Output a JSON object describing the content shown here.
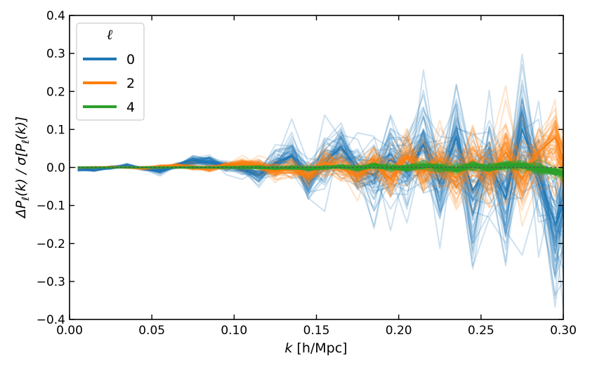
{
  "chart_data": {
    "type": "line",
    "xlabel": "k [h/Mpc]",
    "ylabel": "ΔP_ℓ(k) / σ[P_ℓ(k)]",
    "xlabel_parts": {
      "k": "k",
      "unit": " [h/Mpc]"
    },
    "ylabel_parts": {
      "delta": "ΔP",
      "ell": "ℓ",
      "mid1": "(k) / σ[P",
      "mid2": "(k)]"
    },
    "xlim": [
      0.0,
      0.3
    ],
    "ylim": [
      -0.4,
      0.4
    ],
    "xticks": [
      0.0,
      0.05,
      0.1,
      0.15,
      0.2,
      0.25,
      0.3
    ],
    "xtick_labels": [
      "0.00",
      "0.05",
      "0.10",
      "0.15",
      "0.20",
      "0.25",
      "0.30"
    ],
    "yticks": [
      -0.4,
      -0.3,
      -0.2,
      -0.1,
      0.0,
      0.1,
      0.2,
      0.3,
      0.4
    ],
    "ytick_labels": [
      "−0.4",
      "−0.3",
      "−0.2",
      "−0.1",
      "0.0",
      "0.1",
      "0.2",
      "0.3",
      "0.4"
    ],
    "grid": false,
    "legend": {
      "title": "ℓ",
      "location": "top-left",
      "entries": [
        {
          "label": "0",
          "color": "#1f77b4"
        },
        {
          "label": "2",
          "color": "#ff7f0e"
        },
        {
          "label": "4",
          "color": "#2ca02c"
        }
      ]
    },
    "k": [
      0.005,
      0.015,
      0.025,
      0.035,
      0.045,
      0.055,
      0.065,
      0.075,
      0.085,
      0.095,
      0.105,
      0.115,
      0.125,
      0.135,
      0.145,
      0.155,
      0.165,
      0.175,
      0.185,
      0.195,
      0.205,
      0.215,
      0.225,
      0.235,
      0.245,
      0.255,
      0.265,
      0.275,
      0.285,
      0.295,
      0.3
    ],
    "series": [
      {
        "name": "0",
        "color": "#1f77b4",
        "realizations": 60,
        "mean": [
          -0.005,
          -0.006,
          -0.001,
          0.005,
          -0.003,
          -0.01,
          0.005,
          0.018,
          0.015,
          0.005,
          -0.005,
          -0.02,
          0.01,
          0.03,
          -0.03,
          0.01,
          0.055,
          -0.005,
          -0.02,
          0.02,
          -0.01,
          0.06,
          -0.04,
          0.08,
          -0.06,
          0.01,
          -0.08,
          0.1,
          -0.02,
          -0.15,
          -0.1
        ],
        "spread": [
          0.002,
          0.002,
          0.002,
          0.002,
          0.002,
          0.003,
          0.004,
          0.005,
          0.006,
          0.007,
          0.01,
          0.015,
          0.02,
          0.025,
          0.03,
          0.035,
          0.03,
          0.04,
          0.05,
          0.06,
          0.05,
          0.06,
          0.06,
          0.07,
          0.08,
          0.06,
          0.07,
          0.08,
          0.07,
          0.09,
          0.09
        ]
      },
      {
        "name": "2",
        "color": "#ff7f0e",
        "realizations": 60,
        "mean": [
          0.0,
          0.0,
          0.001,
          0.0,
          -0.002,
          0.002,
          0.004,
          0.0,
          -0.003,
          0.005,
          0.01,
          0.005,
          -0.01,
          0.0,
          -0.02,
          0.01,
          0.0,
          -0.02,
          0.02,
          -0.03,
          0.03,
          -0.01,
          0.02,
          -0.03,
          0.02,
          -0.02,
          0.04,
          -0.03,
          0.04,
          0.08,
          0.02
        ],
        "spread": [
          0.001,
          0.001,
          0.001,
          0.001,
          0.002,
          0.002,
          0.003,
          0.004,
          0.005,
          0.006,
          0.008,
          0.01,
          0.012,
          0.015,
          0.018,
          0.02,
          0.022,
          0.025,
          0.028,
          0.03,
          0.032,
          0.035,
          0.04,
          0.045,
          0.045,
          0.05,
          0.05,
          0.055,
          0.055,
          0.06,
          0.06
        ]
      },
      {
        "name": "4",
        "color": "#2ca02c",
        "realizations": 60,
        "mean": [
          0.0,
          0.0,
          0.0,
          0.0,
          0.0,
          0.0,
          0.0,
          0.0,
          0.0,
          0.0,
          0.0,
          0.0,
          -0.002,
          0.0,
          -0.003,
          0.0,
          0.002,
          -0.003,
          0.003,
          0.0,
          -0.002,
          0.004,
          0.0,
          -0.004,
          0.005,
          0.0,
          0.006,
          0.004,
          -0.004,
          -0.01,
          -0.015
        ],
        "spread": [
          0.0005,
          0.0005,
          0.0005,
          0.0005,
          0.0006,
          0.0007,
          0.0008,
          0.001,
          0.001,
          0.0012,
          0.0015,
          0.0018,
          0.002,
          0.0025,
          0.003,
          0.003,
          0.0035,
          0.004,
          0.004,
          0.0045,
          0.005,
          0.005,
          0.0055,
          0.006,
          0.006,
          0.0065,
          0.007,
          0.007,
          0.0075,
          0.008,
          0.008
        ]
      }
    ]
  }
}
